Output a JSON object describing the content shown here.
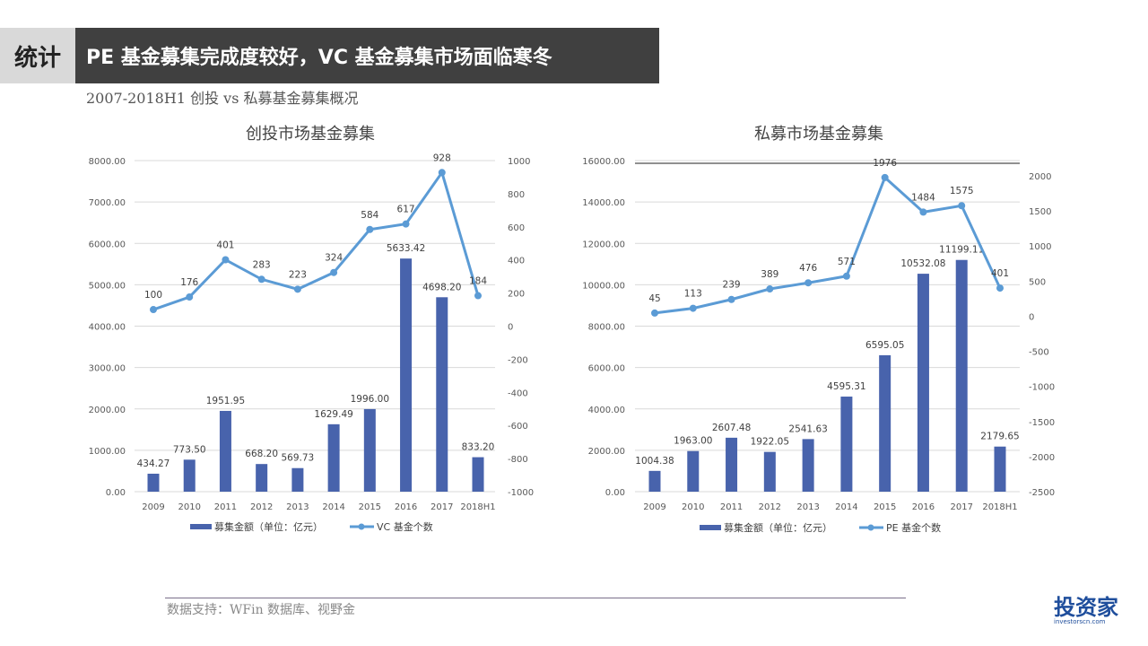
{
  "header": {
    "section": "统计",
    "title": "PE 基金募集完成度较好，VC 基金募集市场面临寒冬"
  },
  "subtitle": "2007-2018H1 创投 vs 私募基金募集概况",
  "footer": "数据支持：WFin 数据库、视野金",
  "logo": {
    "text": "投资家",
    "sub": "investorscn.com"
  },
  "colors": {
    "bar": "#4863ac",
    "line": "#5b9bd5"
  },
  "chart_data": [
    {
      "type": "bar+line",
      "title": "创投市场基金募集",
      "categories": [
        "2009",
        "2010",
        "2011",
        "2012",
        "2013",
        "2014",
        "2015",
        "2016",
        "2017",
        "2018H1"
      ],
      "series": [
        {
          "name": "募集金额（单位：亿元）",
          "type": "bar",
          "axis": "left",
          "values": [
            434.27,
            773.5,
            1951.95,
            668.2,
            569.73,
            1629.49,
            1996.0,
            5633.42,
            4698.2,
            833.2
          ],
          "labels": [
            "434.27",
            "773.50",
            "1951.95",
            "668.20",
            "569.73",
            "1629.49",
            "1996.00",
            "5633.42",
            "4698.20",
            "833.20"
          ]
        },
        {
          "name": "VC 基金个数",
          "type": "line",
          "axis": "right",
          "values": [
            100,
            176,
            401,
            283,
            223,
            324,
            584,
            617,
            928,
            184
          ]
        }
      ],
      "ylim": [
        0,
        8000
      ],
      "yticks": [
        "0.00",
        "1000.00",
        "2000.00",
        "3000.00",
        "4000.00",
        "5000.00",
        "6000.00",
        "7000.00",
        "8000.00"
      ],
      "y2lim": [
        -1000,
        1000
      ],
      "y2ticks": [
        "-1000",
        "-800",
        "-600",
        "-400",
        "-200",
        "0",
        "200",
        "400",
        "600",
        "800",
        "1000"
      ],
      "grid": true,
      "legend": "bottom"
    },
    {
      "type": "bar+line",
      "title": "私募市场基金募集",
      "categories": [
        "2009",
        "2010",
        "2011",
        "2012",
        "2013",
        "2014",
        "2015",
        "2016",
        "2017",
        "2018H1"
      ],
      "series": [
        {
          "name": "募集金额（单位：亿元）",
          "type": "bar",
          "axis": "left",
          "values": [
            1004.38,
            1963.0,
            2607.48,
            1922.05,
            2541.63,
            4595.31,
            6595.05,
            10532.08,
            11199.11,
            2179.65
          ],
          "labels": [
            "1004.38",
            "1963.00",
            "2607.48",
            "1922.05",
            "2541.63",
            "4595.31",
            "6595.05",
            "10532.08",
            "11199.11",
            "2179.65"
          ]
        },
        {
          "name": "PE 基金个数",
          "type": "line",
          "axis": "right",
          "values": [
            45,
            113,
            239,
            389,
            476,
            571,
            1976,
            1484,
            1575,
            401
          ]
        }
      ],
      "ylim": [
        0,
        16000
      ],
      "yticks": [
        "0.00",
        "2000.00",
        "4000.00",
        "6000.00",
        "8000.00",
        "10000.00",
        "12000.00",
        "14000.00",
        "16000.00"
      ],
      "y2lim": [
        -2500,
        2000
      ],
      "y2ticks": [
        "-2500",
        "-2000",
        "-1500",
        "-1000",
        "-500",
        "0",
        "500",
        "1000",
        "1500",
        "2000"
      ],
      "grid": true,
      "legend": "bottom"
    }
  ]
}
